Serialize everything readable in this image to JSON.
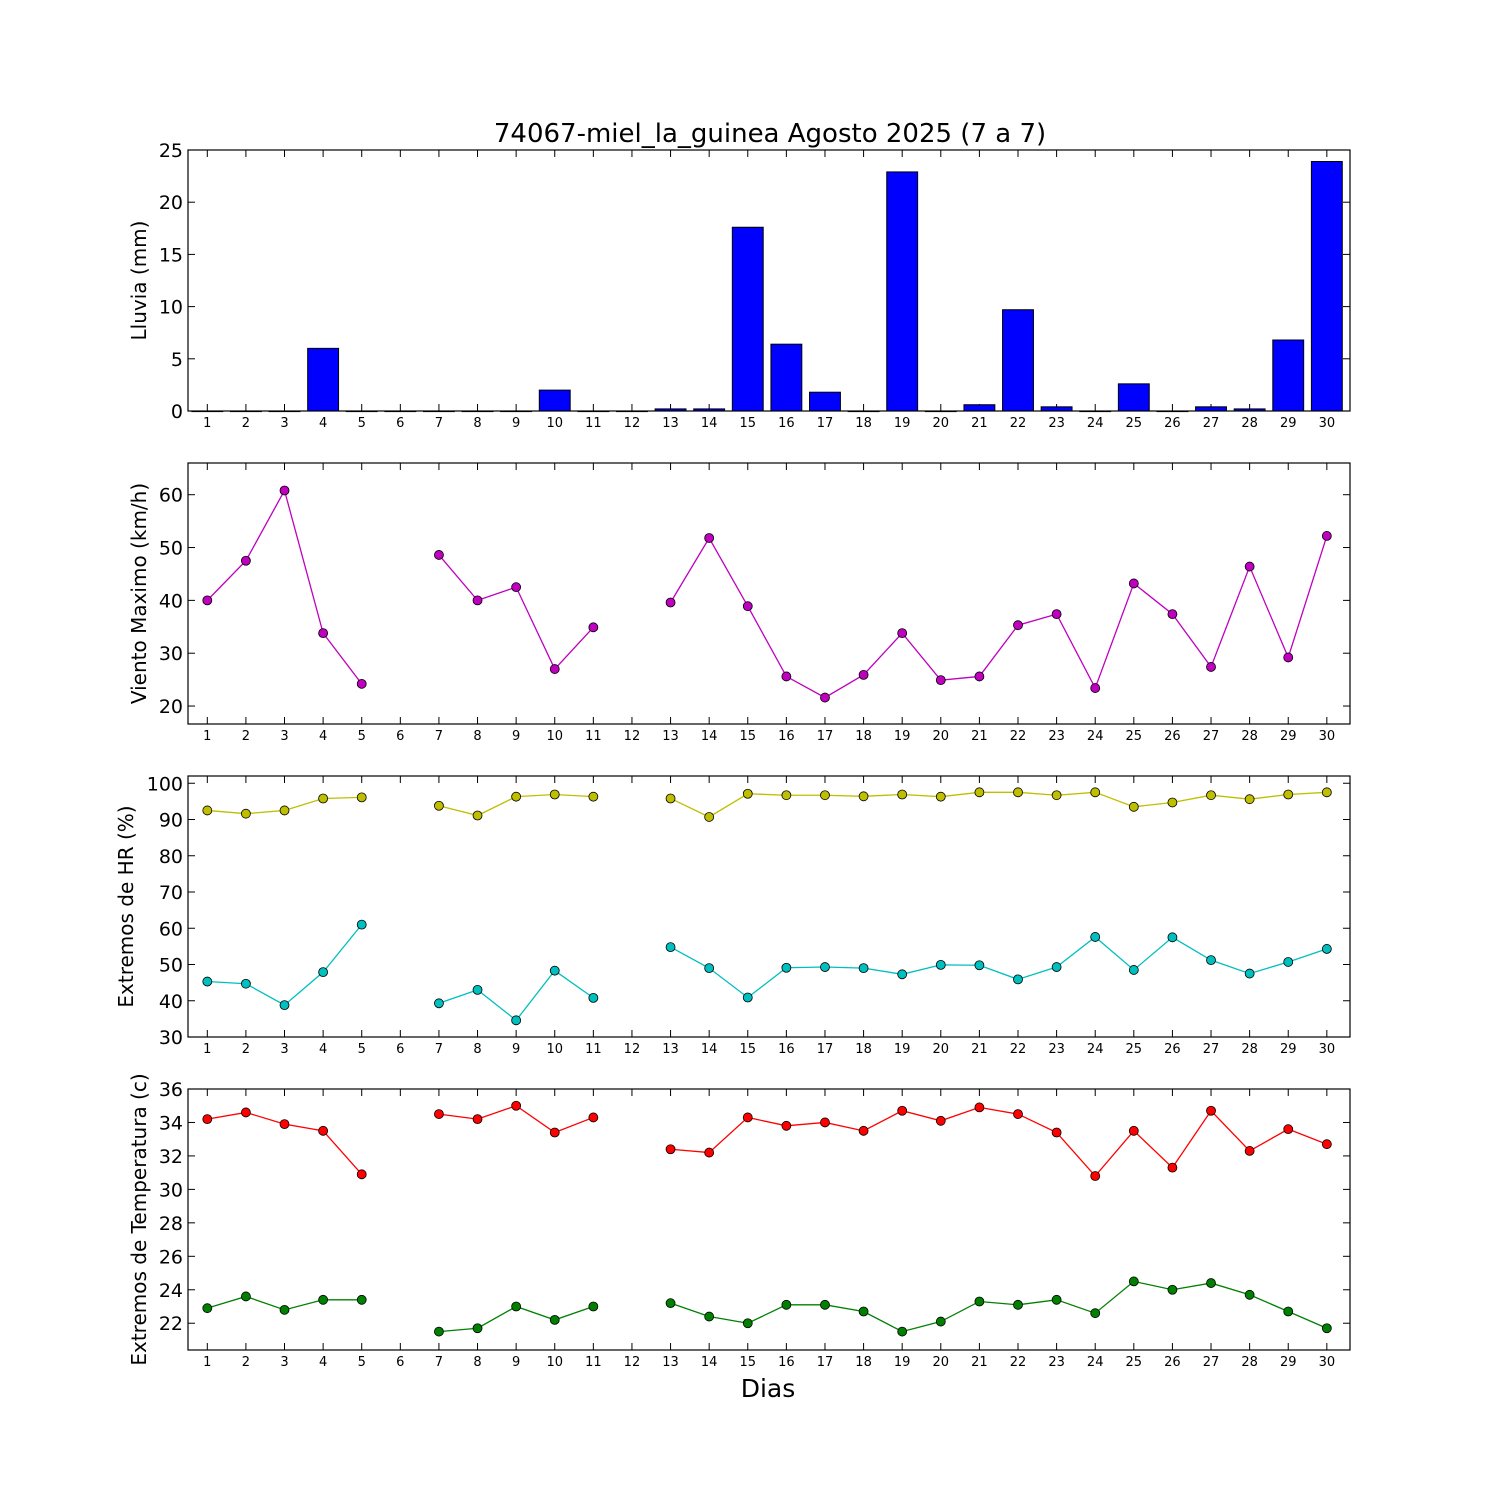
{
  "chart_data": {
    "title": "74067-miel_la_guinea Agosto 2025  (7 a 7)",
    "xlabel": "Dias",
    "days": [
      1,
      2,
      3,
      4,
      5,
      6,
      7,
      8,
      9,
      10,
      11,
      12,
      13,
      14,
      15,
      16,
      17,
      18,
      19,
      20,
      21,
      22,
      23,
      24,
      25,
      26,
      27,
      28,
      29,
      30
    ],
    "panels": [
      {
        "type": "bar",
        "ylabel": "Lluvia (mm)",
        "ylim": [
          0,
          25
        ],
        "yticks": [
          0,
          5,
          10,
          15,
          20,
          25
        ],
        "series": [
          {
            "color": "#0000ff",
            "values": [
              0,
              0,
              0,
              6.0,
              0,
              0,
              0,
              0,
              0,
              2.0,
              0,
              0,
              0.2,
              0.2,
              17.6,
              6.4,
              1.8,
              0,
              22.9,
              0,
              0.6,
              9.7,
              0.4,
              0,
              2.6,
              0,
              0.4,
              0.2,
              6.8,
              23.9
            ]
          }
        ]
      },
      {
        "type": "line",
        "ylabel": "Viento Maximo (km/h)",
        "ylim": [
          16.6,
          66
        ],
        "yticks": [
          20,
          30,
          40,
          50,
          60
        ],
        "series": [
          {
            "color": "#bf00bf",
            "values": [
              40.0,
              47.5,
              60.8,
              33.8,
              24.2,
              null,
              48.6,
              40.0,
              42.5,
              27.0,
              34.9,
              null,
              39.6,
              51.8,
              38.9,
              25.6,
              21.6,
              25.9,
              33.8,
              24.9,
              25.6,
              35.3,
              37.4,
              23.4,
              43.2,
              37.4,
              27.4,
              46.4,
              29.2,
              52.2
            ]
          }
        ]
      },
      {
        "type": "line",
        "ylabel": "Extremos de HR (%)",
        "ylim": [
          30,
          102
        ],
        "yticks": [
          30,
          40,
          50,
          60,
          70,
          80,
          90,
          100
        ],
        "series": [
          {
            "color": "#bfbf00",
            "values": [
              92.5,
              91.6,
              92.5,
              95.8,
              96.1,
              null,
              93.8,
              91.1,
              96.3,
              96.9,
              96.3,
              null,
              95.8,
              90.7,
              97.1,
              96.7,
              96.7,
              96.4,
              96.9,
              96.3,
              97.5,
              97.5,
              96.7,
              97.5,
              93.5,
              94.7,
              96.7,
              95.6,
              96.9,
              97.5
            ]
          },
          {
            "color": "#00bfbf",
            "values": [
              45.3,
              44.7,
              38.8,
              47.9,
              61.0,
              null,
              39.3,
              43.0,
              34.6,
              48.3,
              40.8,
              null,
              54.8,
              49.0,
              40.9,
              49.1,
              49.3,
              49.0,
              47.3,
              49.9,
              49.8,
              45.9,
              49.3,
              57.6,
              48.5,
              57.5,
              51.2,
              47.5,
              50.7,
              54.3
            ]
          }
        ]
      },
      {
        "type": "line",
        "ylabel": "Extremos de Temperatura (c)",
        "ylim": [
          20.4,
          36
        ],
        "yticks": [
          22,
          24,
          26,
          28,
          30,
          32,
          34,
          36
        ],
        "series": [
          {
            "color": "#ff0000",
            "values": [
              34.2,
              34.6,
              33.9,
              33.5,
              30.9,
              null,
              34.5,
              34.2,
              35.0,
              33.4,
              34.3,
              null,
              32.4,
              32.2,
              34.3,
              33.8,
              34.0,
              33.5,
              34.7,
              34.1,
              34.9,
              34.5,
              33.4,
              30.8,
              33.5,
              31.3,
              34.7,
              32.3,
              33.6,
              32.7
            ]
          },
          {
            "color": "#008000",
            "values": [
              22.9,
              23.6,
              22.8,
              23.4,
              23.4,
              null,
              21.5,
              21.7,
              23.0,
              22.2,
              23.0,
              null,
              23.2,
              22.4,
              22.0,
              23.1,
              23.1,
              22.7,
              21.5,
              22.1,
              23.3,
              23.1,
              23.4,
              22.6,
              24.5,
              24.0,
              24.4,
              23.7,
              22.7,
              21.7
            ]
          }
        ]
      }
    ]
  }
}
